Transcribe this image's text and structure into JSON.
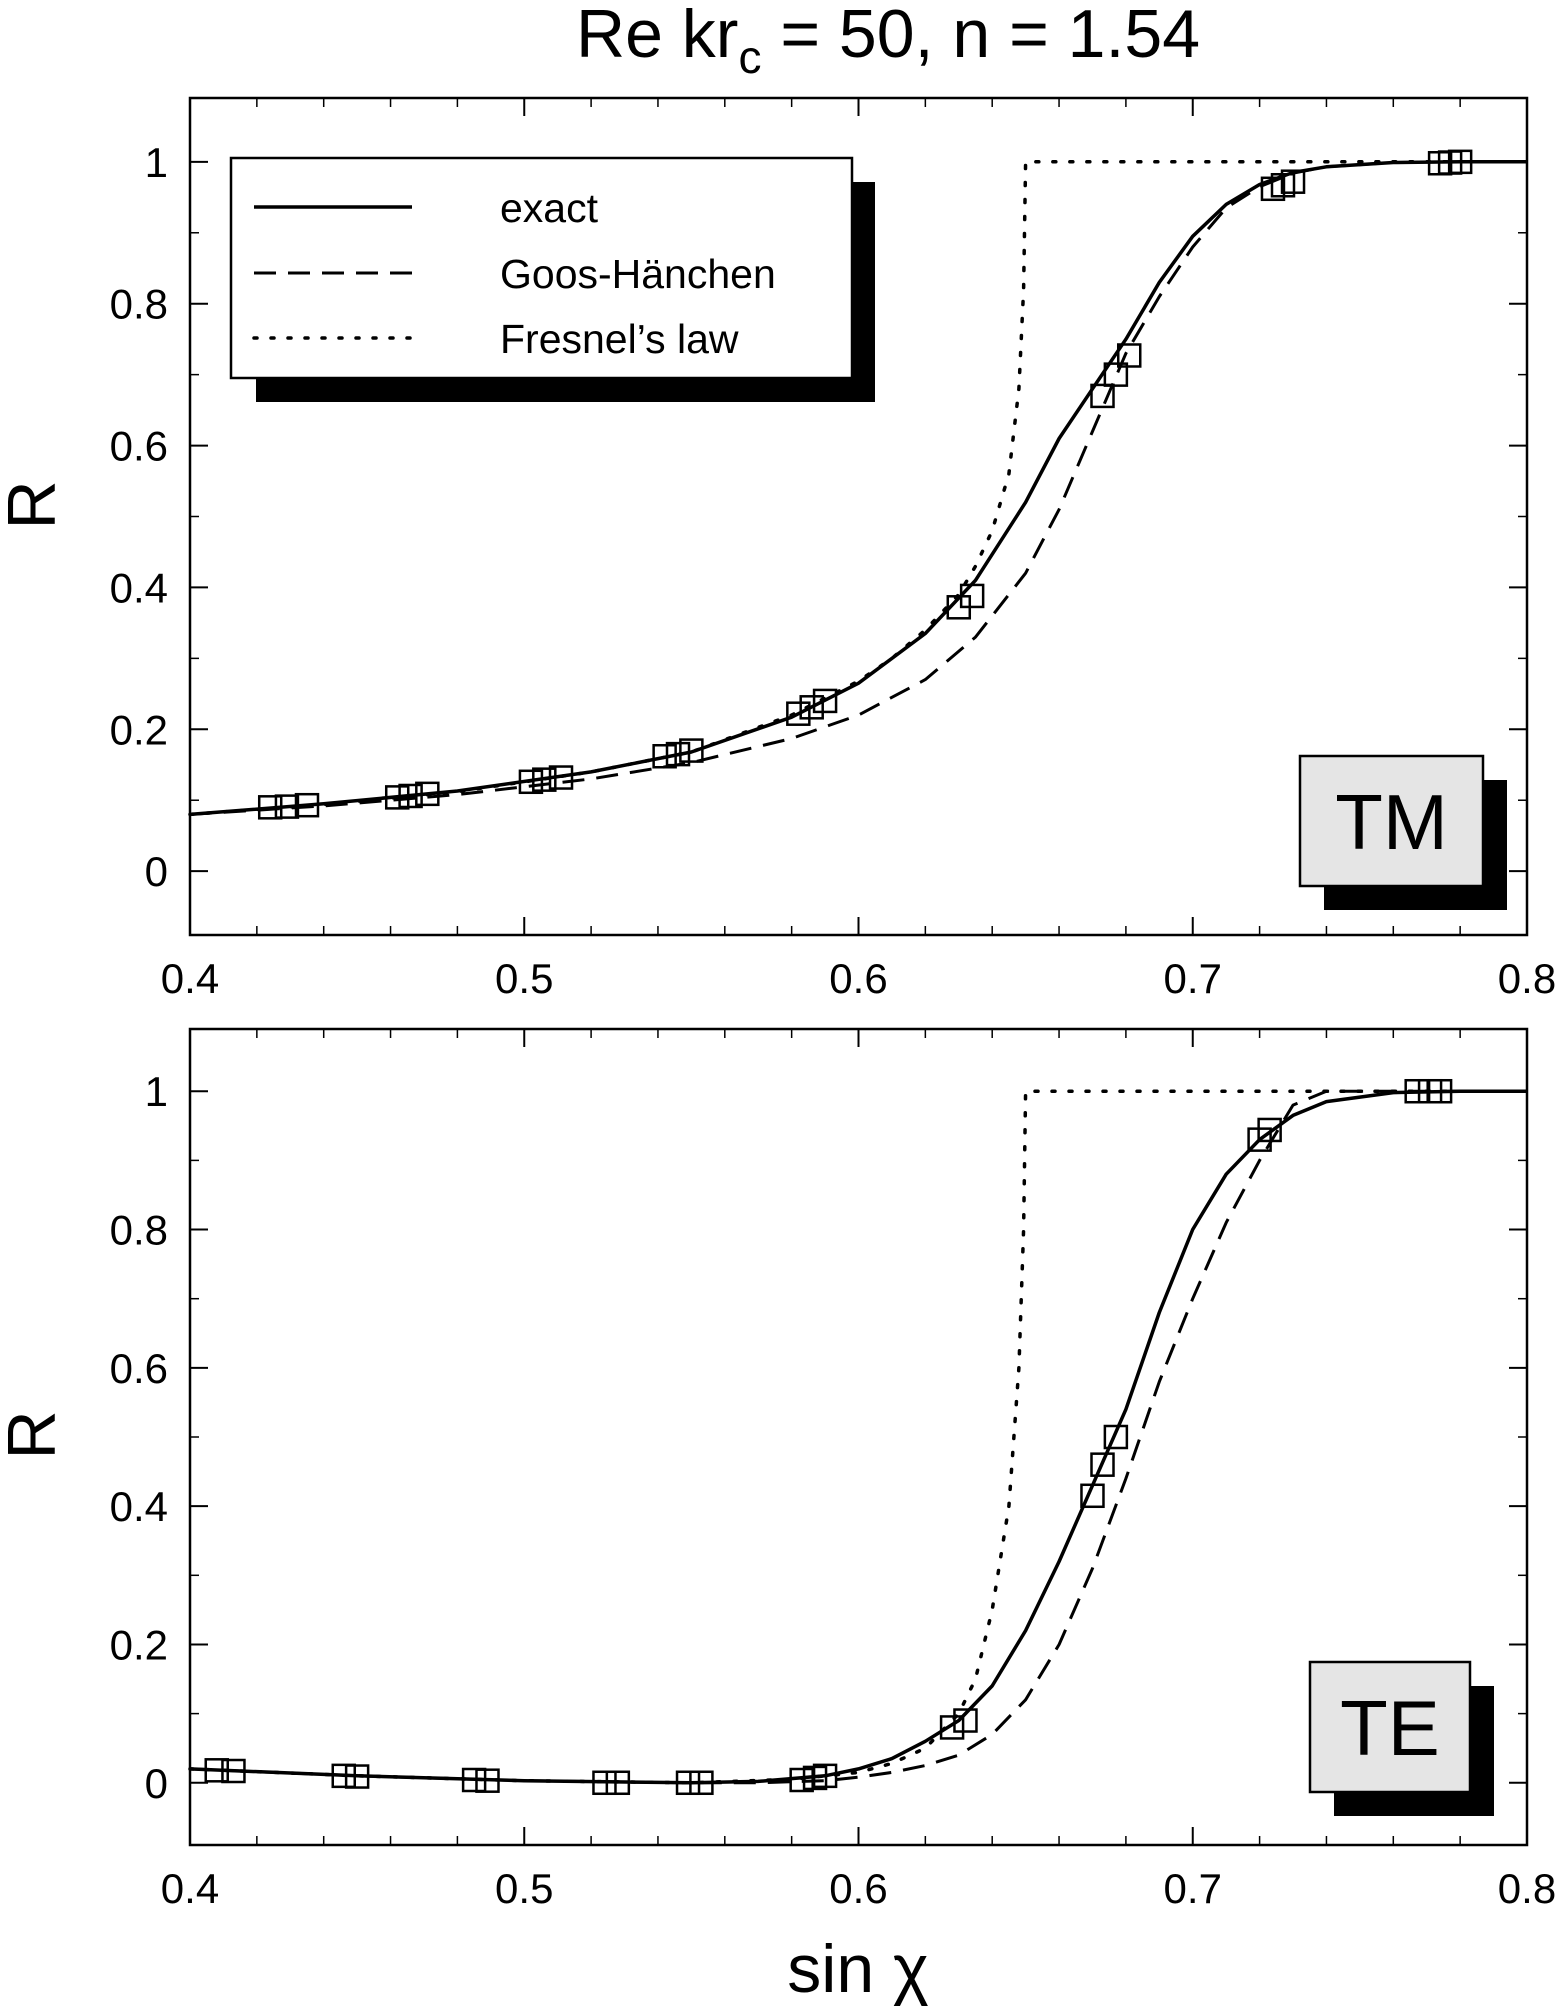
{
  "title": {
    "prefix": "Re kr",
    "subscript": "c",
    "suffix": " = 50, n = 1.54"
  },
  "legend": {
    "entries": [
      {
        "label": "exact",
        "style": "solid"
      },
      {
        "label": "Goos-Hänchen",
        "style": "dashed"
      },
      {
        "label": "Fresnel’s law",
        "style": "dotted"
      }
    ]
  },
  "colors": {
    "line": "#000000",
    "panel_label_fill": "#e5e5e5",
    "shadow": "#000000",
    "background": "#ffffff"
  },
  "chart_data": [
    {
      "type": "line",
      "panel_label": "TM",
      "xlabel": "",
      "ylabel": "R",
      "xlim": [
        0.4,
        0.8
      ],
      "ylim": [
        -0.09,
        1.09
      ],
      "xticks": [
        "0.4",
        "0.5",
        "0.6",
        "0.7",
        "0.8"
      ],
      "yticks": [
        "0",
        "0.2",
        "0.4",
        "0.6",
        "0.8",
        "1"
      ],
      "grid": false,
      "legend_position": "top-left",
      "series": [
        {
          "name": "exact",
          "style": "solid",
          "x": [
            0.4,
            0.44,
            0.48,
            0.52,
            0.55,
            0.58,
            0.6,
            0.62,
            0.635,
            0.65,
            0.66,
            0.67,
            0.68,
            0.69,
            0.7,
            0.71,
            0.72,
            0.73,
            0.74,
            0.76,
            0.78,
            0.8
          ],
          "y": [
            0.08,
            0.095,
            0.113,
            0.14,
            0.168,
            0.217,
            0.265,
            0.335,
            0.41,
            0.52,
            0.61,
            0.68,
            0.75,
            0.83,
            0.895,
            0.94,
            0.968,
            0.985,
            0.993,
            0.999,
            1.0,
            1.0
          ]
        },
        {
          "name": "Goos-Hänchen",
          "style": "dashed",
          "x": [
            0.4,
            0.44,
            0.48,
            0.52,
            0.55,
            0.58,
            0.6,
            0.62,
            0.635,
            0.65,
            0.66,
            0.67,
            0.68,
            0.69,
            0.7,
            0.71,
            0.72,
            0.73,
            0.74,
            0.76,
            0.78,
            0.8
          ],
          "y": [
            0.08,
            0.092,
            0.108,
            0.13,
            0.153,
            0.187,
            0.22,
            0.27,
            0.33,
            0.42,
            0.51,
            0.62,
            0.73,
            0.81,
            0.88,
            0.935,
            0.965,
            0.984,
            0.993,
            0.999,
            1.0,
            1.0
          ]
        },
        {
          "name": "Fresnel’s law",
          "style": "dotted",
          "x": [
            0.4,
            0.44,
            0.48,
            0.52,
            0.55,
            0.58,
            0.6,
            0.61,
            0.62,
            0.63,
            0.635,
            0.64,
            0.645,
            0.648,
            0.6494,
            0.65,
            0.7,
            0.8
          ],
          "y": [
            0.08,
            0.094,
            0.112,
            0.14,
            0.168,
            0.22,
            0.268,
            0.3,
            0.34,
            0.39,
            0.43,
            0.48,
            0.56,
            0.68,
            0.82,
            1.0,
            1.0,
            1.0
          ]
        },
        {
          "name": "",
          "style": "markers",
          "x": [
            0.424,
            0.429,
            0.435,
            0.462,
            0.466,
            0.471,
            0.502,
            0.506,
            0.511,
            0.542,
            0.546,
            0.55,
            0.582,
            0.586,
            0.59,
            0.63,
            0.634,
            0.673,
            0.677,
            0.681,
            0.724,
            0.727,
            0.73,
            0.774,
            0.777,
            0.78
          ],
          "y": [
            0.09,
            0.091,
            0.093,
            0.104,
            0.106,
            0.109,
            0.126,
            0.129,
            0.132,
            0.162,
            0.165,
            0.17,
            0.222,
            0.231,
            0.24,
            0.372,
            0.388,
            0.67,
            0.7,
            0.727,
            0.962,
            0.967,
            0.972,
            0.998,
            0.999,
            1.0
          ]
        }
      ]
    },
    {
      "type": "line",
      "panel_label": "TE",
      "xlabel": "sin χ",
      "ylabel": "R",
      "xlim": [
        0.4,
        0.8
      ],
      "ylim": [
        -0.09,
        1.09
      ],
      "xticks": [
        "0.4",
        "0.5",
        "0.6",
        "0.7",
        "0.8"
      ],
      "yticks": [
        "0",
        "0.2",
        "0.4",
        "0.6",
        "0.8",
        "1"
      ],
      "grid": false,
      "series": [
        {
          "name": "exact",
          "style": "solid",
          "x": [
            0.4,
            0.45,
            0.5,
            0.55,
            0.57,
            0.59,
            0.6,
            0.61,
            0.62,
            0.63,
            0.64,
            0.65,
            0.66,
            0.67,
            0.68,
            0.69,
            0.7,
            0.71,
            0.72,
            0.73,
            0.74,
            0.76,
            0.78,
            0.8
          ],
          "y": [
            0.02,
            0.01,
            0.003,
            0.0,
            0.002,
            0.01,
            0.02,
            0.035,
            0.06,
            0.09,
            0.14,
            0.22,
            0.32,
            0.43,
            0.54,
            0.68,
            0.8,
            0.88,
            0.93,
            0.965,
            0.985,
            0.998,
            1.0,
            1.0
          ]
        },
        {
          "name": "Goos-Hänchen",
          "style": "dashed",
          "x": [
            0.4,
            0.45,
            0.5,
            0.55,
            0.57,
            0.59,
            0.6,
            0.61,
            0.62,
            0.63,
            0.64,
            0.65,
            0.66,
            0.67,
            0.68,
            0.69,
            0.7,
            0.71,
            0.72,
            0.73,
            0.74,
            0.76,
            0.8
          ],
          "y": [
            0.02,
            0.01,
            0.003,
            0.0,
            0.0,
            0.003,
            0.008,
            0.015,
            0.025,
            0.04,
            0.07,
            0.12,
            0.2,
            0.31,
            0.44,
            0.58,
            0.7,
            0.81,
            0.9,
            0.98,
            1.0,
            1.0,
            1.0
          ]
        },
        {
          "name": "Fresnel’s law",
          "style": "dotted",
          "x": [
            0.4,
            0.45,
            0.5,
            0.55,
            0.58,
            0.6,
            0.61,
            0.62,
            0.63,
            0.635,
            0.64,
            0.645,
            0.648,
            0.6494,
            0.65,
            0.7,
            0.8
          ],
          "y": [
            0.02,
            0.01,
            0.003,
            0.0,
            0.005,
            0.015,
            0.028,
            0.05,
            0.1,
            0.15,
            0.25,
            0.4,
            0.6,
            0.8,
            1.0,
            1.0,
            1.0
          ]
        },
        {
          "name": "",
          "style": "markers",
          "x": [
            0.408,
            0.413,
            0.446,
            0.45,
            0.485,
            0.489,
            0.524,
            0.528,
            0.549,
            0.553,
            0.583,
            0.587,
            0.59,
            0.628,
            0.632,
            0.67,
            0.673,
            0.677,
            0.72,
            0.723,
            0.767,
            0.771,
            0.774
          ],
          "y": [
            0.018,
            0.017,
            0.01,
            0.009,
            0.004,
            0.003,
            0.0,
            0.0,
            0.0,
            0.0,
            0.004,
            0.007,
            0.01,
            0.08,
            0.09,
            0.415,
            0.46,
            0.5,
            0.93,
            0.944,
            1.0,
            1.0,
            1.0
          ]
        }
      ]
    }
  ]
}
